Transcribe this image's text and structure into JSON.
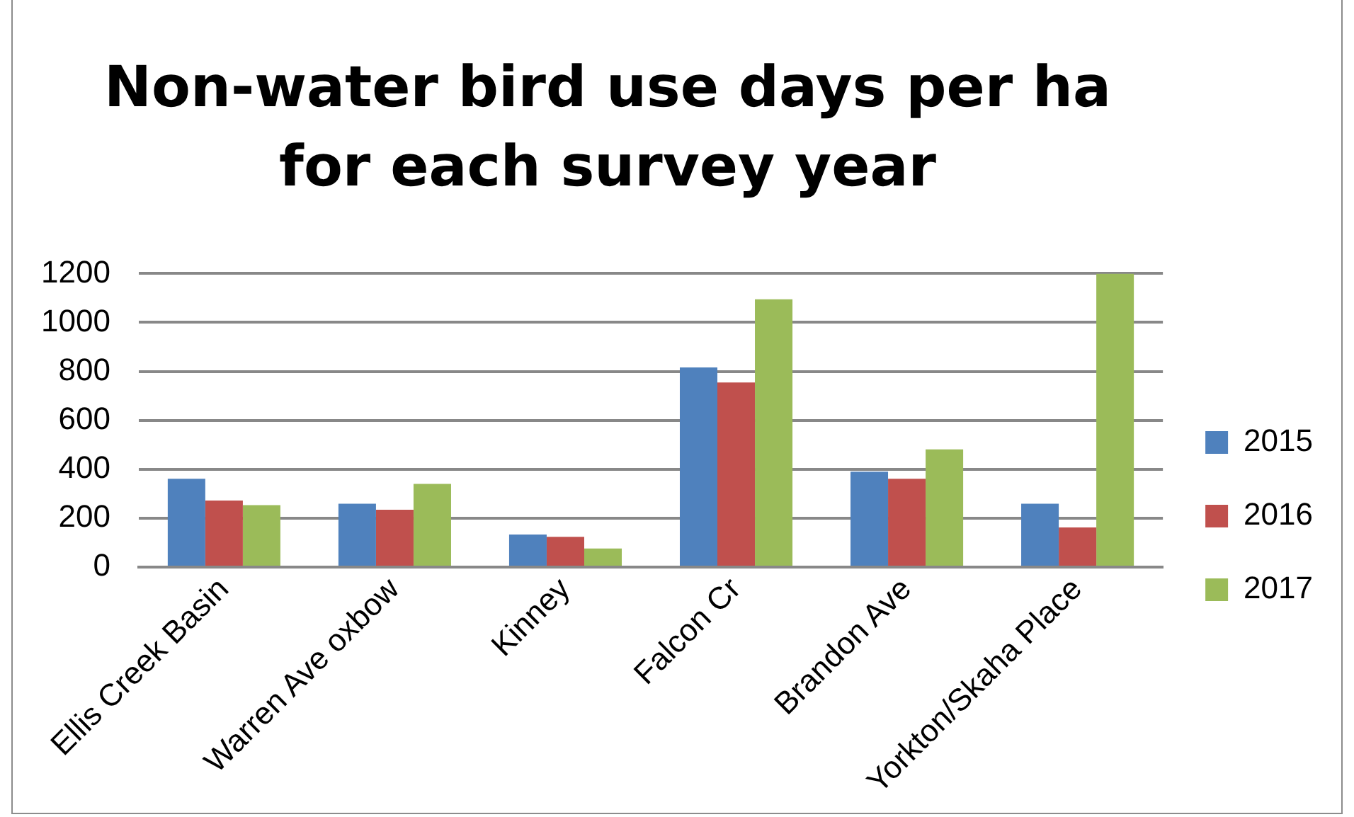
{
  "chart_data": {
    "type": "bar",
    "title": "Non-water bird use days per ha for each survey year",
    "categories": [
      "Ellis Creek Basin",
      "Warren Ave oxbow",
      "Kinney",
      "Falcon Cr",
      "Brandon Ave",
      "Yorkton/Skaha Place"
    ],
    "series": [
      {
        "name": "2015",
        "color": "#4f81bd",
        "values": [
          361,
          259,
          133,
          816,
          390,
          259
        ]
      },
      {
        "name": "2016",
        "color": "#c0504d",
        "values": [
          272,
          234,
          124,
          755,
          361,
          162
        ]
      },
      {
        "name": "2017",
        "color": "#9bbb59",
        "values": [
          253,
          340,
          76,
          1095,
          481,
          1200
        ]
      }
    ],
    "ylim": [
      0,
      1200
    ],
    "yticks": [
      0,
      200,
      400,
      600,
      800,
      1000,
      1200
    ],
    "grid": "y",
    "legend": "right"
  }
}
